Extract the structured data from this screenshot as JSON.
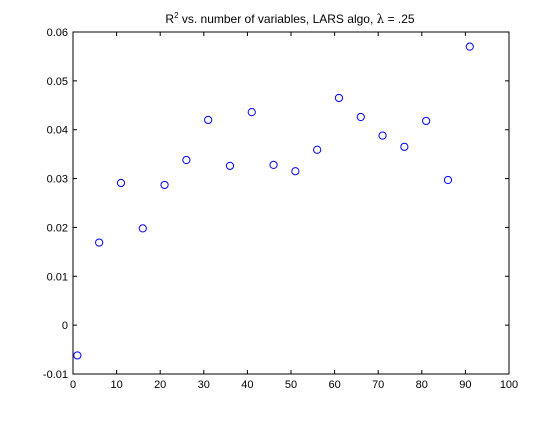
{
  "chart_data": {
    "type": "scatter",
    "title_main": "R",
    "title_sup": "2",
    "title_rest": " vs. number of variables, LARS algo, ",
    "title_symbol": "λ",
    "title_tail": " = .25",
    "xlabel": "",
    "ylabel": "",
    "xlim": [
      0,
      100
    ],
    "ylim": [
      -0.01,
      0.06
    ],
    "xticks": [
      0,
      10,
      20,
      30,
      40,
      50,
      60,
      70,
      80,
      90,
      100
    ],
    "yticks": [
      -0.01,
      0,
      0.01,
      0.02,
      0.03,
      0.04,
      0.05,
      0.06
    ],
    "xtick_labels": [
      "0",
      "10",
      "20",
      "30",
      "40",
      "50",
      "60",
      "70",
      "80",
      "90",
      "100"
    ],
    "ytick_labels": [
      "-0.01",
      "0",
      "0.01",
      "0.02",
      "0.03",
      "0.04",
      "0.05",
      "0.06"
    ],
    "grid": false,
    "marker": "circle-open",
    "marker_color": "#0000ff",
    "x": [
      1,
      6,
      11,
      16,
      21,
      26,
      31,
      36,
      41,
      46,
      51,
      56,
      61,
      66,
      71,
      76,
      81,
      86,
      91
    ],
    "y": [
      -0.0062,
      0.0169,
      0.0291,
      0.0198,
      0.0287,
      0.0338,
      0.042,
      0.0326,
      0.0436,
      0.0328,
      0.0315,
      0.0359,
      0.0465,
      0.0426,
      0.0388,
      0.0365,
      0.0418,
      0.0297,
      0.057
    ]
  }
}
